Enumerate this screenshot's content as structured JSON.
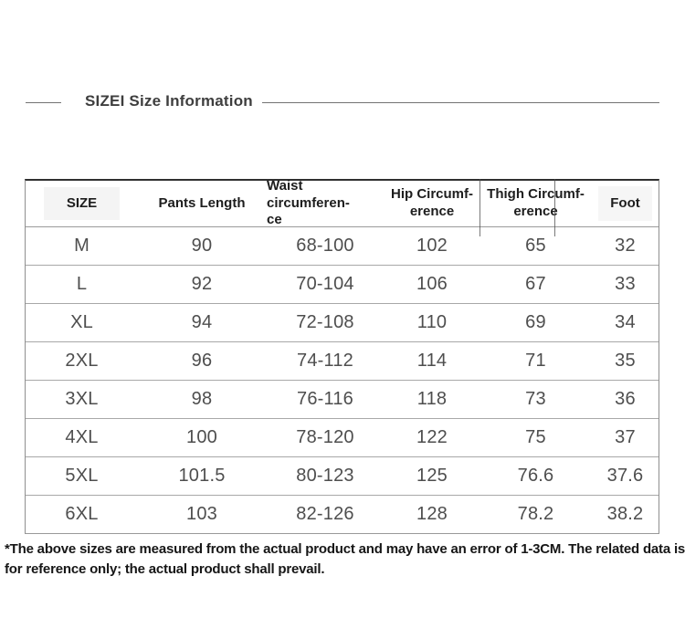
{
  "title": "SIZEI Size Information",
  "table": {
    "headers": [
      "SIZE",
      "Pants Length",
      "Waist circumferen-\nce",
      "Hip Circumf-\nerence",
      "Thigh Circumf-\nerence",
      "Foot"
    ],
    "rows": [
      {
        "size": "M",
        "pants_length": "90",
        "waist": "68-100",
        "hip": "102",
        "thigh": "65",
        "foot": "32"
      },
      {
        "size": "L",
        "pants_length": "92",
        "waist": "70-104",
        "hip": "106",
        "thigh": "67",
        "foot": "33"
      },
      {
        "size": "XL",
        "pants_length": "94",
        "waist": "72-108",
        "hip": "110",
        "thigh": "69",
        "foot": "34"
      },
      {
        "size": "2XL",
        "pants_length": "96",
        "waist": "74-112",
        "hip": "114",
        "thigh": "71",
        "foot": "35"
      },
      {
        "size": "3XL",
        "pants_length": "98",
        "waist": "76-116",
        "hip": "118",
        "thigh": "73",
        "foot": "36"
      },
      {
        "size": "4XL",
        "pants_length": "100",
        "waist": "78-120",
        "hip": "122",
        "thigh": "75",
        "foot": "37"
      },
      {
        "size": "5XL",
        "pants_length": "101.5",
        "waist": "80-123",
        "hip": "125",
        "thigh": "76.6",
        "foot": "37.6"
      },
      {
        "size": "6XL",
        "pants_length": "103",
        "waist": "82-126",
        "hip": "128",
        "thigh": "78.2",
        "foot": "38.2"
      }
    ]
  },
  "footnote": {
    "line1": "*The above sizes are measured from the actual product and may have an error of 1-3CM. The related data is",
    "line2": "for reference only; the actual product shall prevail."
  },
  "colors": {
    "title_text": "#3e3e3e",
    "header_text": "#1d1d1d",
    "cell_text": "#4e4e4e",
    "table_border_dark": "#2f2f2f",
    "table_border_light": "#a8a8a8",
    "footnote_text": "#161616"
  }
}
